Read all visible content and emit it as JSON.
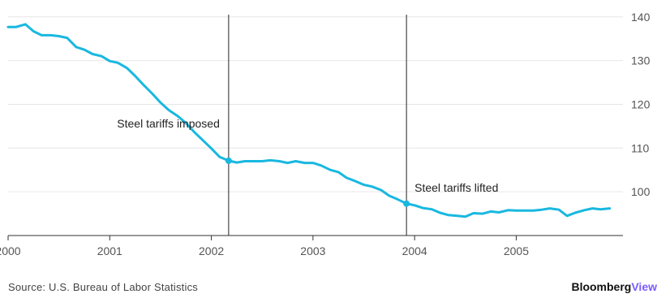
{
  "chart_data": {
    "type": "line",
    "title": "",
    "xlabel": "",
    "ylabel": "",
    "xlim": [
      2000,
      2006.05
    ],
    "ylim": [
      90,
      142
    ],
    "x_ticks": [
      {
        "value": 2000,
        "label": "2000"
      },
      {
        "value": 2001,
        "label": "2001"
      },
      {
        "value": 2002,
        "label": "2002"
      },
      {
        "value": 2003,
        "label": "2003"
      },
      {
        "value": 2004,
        "label": "2004"
      },
      {
        "value": 2005,
        "label": "2005"
      }
    ],
    "y_ticks": [
      {
        "value": 100,
        "label": "100"
      },
      {
        "value": 110,
        "label": "110"
      },
      {
        "value": 120,
        "label": "120"
      },
      {
        "value": 130,
        "label": "130"
      },
      {
        "value": 140,
        "label": "140"
      }
    ],
    "grid": true,
    "series": [
      {
        "color": "#19b8e0",
        "points": [
          [
            2000.0,
            137.7
          ],
          [
            2000.08,
            137.7
          ],
          [
            2000.17,
            138.3
          ],
          [
            2000.25,
            136.7
          ],
          [
            2000.33,
            135.8
          ],
          [
            2000.42,
            135.8
          ],
          [
            2000.5,
            135.6
          ],
          [
            2000.58,
            135.2
          ],
          [
            2000.67,
            133.1
          ],
          [
            2000.75,
            132.5
          ],
          [
            2000.83,
            131.5
          ],
          [
            2000.92,
            131.0
          ],
          [
            2001.0,
            129.9
          ],
          [
            2001.08,
            129.5
          ],
          [
            2001.17,
            128.3
          ],
          [
            2001.25,
            126.5
          ],
          [
            2001.33,
            124.5
          ],
          [
            2001.42,
            122.4
          ],
          [
            2001.5,
            120.4
          ],
          [
            2001.58,
            118.7
          ],
          [
            2001.67,
            117.3
          ],
          [
            2001.75,
            115.7
          ],
          [
            2001.83,
            113.7
          ],
          [
            2001.92,
            111.7
          ],
          [
            2002.0,
            109.9
          ],
          [
            2002.08,
            108.0
          ],
          [
            2002.17,
            107.1
          ],
          [
            2002.25,
            106.7
          ],
          [
            2002.33,
            107.0
          ],
          [
            2002.42,
            107.0
          ],
          [
            2002.5,
            107.0
          ],
          [
            2002.58,
            107.2
          ],
          [
            2002.67,
            107.0
          ],
          [
            2002.75,
            106.6
          ],
          [
            2002.83,
            107.0
          ],
          [
            2002.92,
            106.6
          ],
          [
            2003.0,
            106.6
          ],
          [
            2003.08,
            106.0
          ],
          [
            2003.17,
            105.0
          ],
          [
            2003.25,
            104.5
          ],
          [
            2003.33,
            103.2
          ],
          [
            2003.42,
            102.4
          ],
          [
            2003.5,
            101.6
          ],
          [
            2003.58,
            101.2
          ],
          [
            2003.67,
            100.4
          ],
          [
            2003.75,
            99.1
          ],
          [
            2003.83,
            98.3
          ],
          [
            2003.92,
            97.3
          ],
          [
            2004.0,
            96.9
          ],
          [
            2004.08,
            96.3
          ],
          [
            2004.17,
            96.0
          ],
          [
            2004.25,
            95.2
          ],
          [
            2004.33,
            94.7
          ],
          [
            2004.42,
            94.5
          ],
          [
            2004.5,
            94.3
          ],
          [
            2004.58,
            95.1
          ],
          [
            2004.67,
            95.0
          ],
          [
            2004.75,
            95.5
          ],
          [
            2004.83,
            95.3
          ],
          [
            2004.92,
            95.8
          ],
          [
            2005.0,
            95.7
          ],
          [
            2005.08,
            95.7
          ],
          [
            2005.17,
            95.7
          ],
          [
            2005.25,
            95.9
          ],
          [
            2005.33,
            96.2
          ],
          [
            2005.42,
            95.9
          ],
          [
            2005.5,
            94.5
          ],
          [
            2005.58,
            95.2
          ],
          [
            2005.67,
            95.8
          ],
          [
            2005.75,
            96.2
          ],
          [
            2005.83,
            96.0
          ],
          [
            2005.92,
            96.2
          ]
        ]
      }
    ],
    "events": [
      {
        "x": 2002.17,
        "y": 107.1,
        "label": "Steel tariffs imposed",
        "label_side": "left"
      },
      {
        "x": 2003.92,
        "y": 97.3,
        "label": "Steel tariffs lifted",
        "label_side": "right"
      }
    ],
    "source": "Source: U.S. Bureau of Labor Statistics",
    "branding": {
      "part1": "Bloomberg",
      "part2": "View"
    }
  }
}
